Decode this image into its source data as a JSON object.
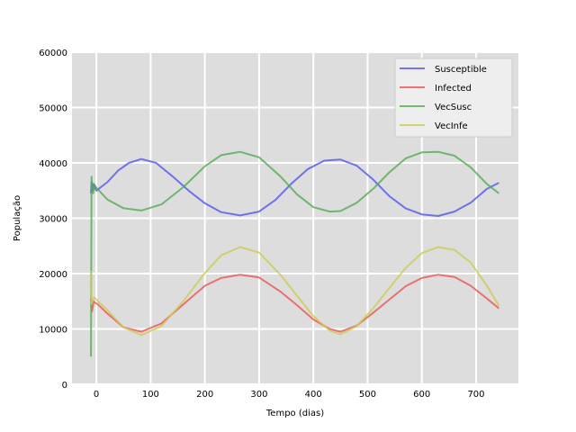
{
  "chart_data": {
    "type": "line",
    "title": "",
    "xlabel": "Tempo (dias)",
    "ylabel": "População",
    "xlim": [
      -45,
      778
    ],
    "ylim": [
      0,
      60000
    ],
    "xticks": [
      0,
      100,
      200,
      300,
      400,
      500,
      600,
      700
    ],
    "yticks": [
      0,
      10000,
      20000,
      30000,
      40000,
      50000,
      60000
    ],
    "xtick_labels": [
      "0",
      "100",
      "200",
      "300",
      "400",
      "500",
      "600",
      "700"
    ],
    "ytick_labels": [
      "0",
      "10000",
      "20000",
      "30000",
      "40000",
      "50000",
      "60000"
    ],
    "grid": true,
    "legend_position": "top-right",
    "background": "#dddddd",
    "series": [
      {
        "name": "Susceptible",
        "color": "#5555ee",
        "x": [
          -10,
          -9,
          -7,
          -5,
          0,
          20,
          40,
          60,
          83,
          110,
          140,
          170,
          200,
          230,
          265,
          300,
          330,
          360,
          390,
          420,
          450,
          480,
          510,
          540,
          570,
          600,
          630,
          660,
          690,
          720,
          742
        ],
        "y": [
          34500,
          36500,
          35000,
          36200,
          35000,
          36500,
          38600,
          40000,
          40700,
          40000,
          37600,
          35000,
          32700,
          31100,
          30500,
          31200,
          33300,
          36300,
          38900,
          40400,
          40600,
          39500,
          37000,
          34000,
          31800,
          30700,
          30400,
          31200,
          32800,
          35300,
          36400
        ]
      },
      {
        "name": "Infected",
        "color": "#ee5555",
        "x": [
          -10,
          -8,
          -5,
          -2,
          2,
          20,
          50,
          83,
          120,
          160,
          200,
          230,
          265,
          300,
          340,
          370,
          400,
          430,
          450,
          480,
          510,
          540,
          570,
          600,
          630,
          660,
          690,
          720,
          742
        ],
        "y": [
          15500,
          13200,
          15000,
          14700,
          14500,
          12800,
          10300,
          9500,
          11000,
          14400,
          17800,
          19200,
          19800,
          19300,
          16700,
          14300,
          11700,
          10000,
          9500,
          10600,
          12900,
          15300,
          17700,
          19200,
          19800,
          19400,
          17800,
          15500,
          13700
        ]
      },
      {
        "name": "VecSusc",
        "color": "#55aa55",
        "x": [
          -10,
          -9,
          -8,
          -6,
          -3,
          0,
          20,
          50,
          83,
          120,
          160,
          200,
          230,
          265,
          300,
          340,
          370,
          400,
          430,
          450,
          480,
          510,
          540,
          570,
          600,
          630,
          660,
          690,
          720,
          742
        ],
        "y": [
          5000,
          37500,
          36000,
          34500,
          36000,
          35500,
          33400,
          31800,
          31400,
          32500,
          35600,
          39400,
          41400,
          42000,
          41000,
          37500,
          34300,
          32000,
          31200,
          31300,
          32800,
          35300,
          38300,
          40800,
          41900,
          42000,
          41300,
          39200,
          36200,
          34500
        ]
      },
      {
        "name": "VecInfe",
        "color": "#cccc55",
        "x": [
          -10,
          -9,
          -7,
          -4,
          0,
          20,
          50,
          83,
          120,
          160,
          200,
          230,
          265,
          300,
          340,
          370,
          400,
          430,
          450,
          480,
          510,
          540,
          570,
          600,
          630,
          660,
          690,
          720,
          742
        ],
        "y": [
          20500,
          14500,
          15200,
          15700,
          15300,
          13400,
          10300,
          8900,
          10500,
          15000,
          20100,
          23300,
          24800,
          23800,
          19700,
          16000,
          12300,
          9700,
          9000,
          10500,
          13700,
          17400,
          21000,
          23700,
          24800,
          24300,
          22000,
          17800,
          14200
        ]
      }
    ]
  }
}
